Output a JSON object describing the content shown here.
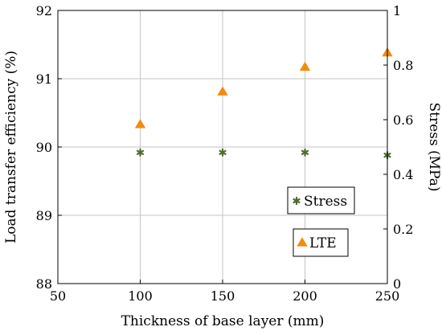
{
  "chart_data": {
    "type": "scatter",
    "xlabel": "Thickness of base layer (mm)",
    "ylabel_left": "Load transfer efficiency (%)",
    "ylabel_right": "Stress (MPa)",
    "xlim": [
      50,
      250
    ],
    "ylim_left": [
      88,
      92
    ],
    "ylim_right": [
      0,
      1
    ],
    "x_ticks": [
      50,
      100,
      150,
      200,
      250
    ],
    "y_left_ticks": [
      88,
      89,
      90,
      91,
      92
    ],
    "y_right_ticks": [
      0,
      0.2,
      0.4,
      0.6,
      0.8,
      1
    ],
    "grid": true,
    "series": [
      {
        "name": "Stress",
        "axis": "right",
        "marker": "asterisk",
        "color": "#4f6b2e",
        "x": [
          100,
          150,
          200,
          250
        ],
        "y": [
          0.48,
          0.48,
          0.48,
          0.47
        ]
      },
      {
        "name": "LTE",
        "axis": "left",
        "marker": "triangle",
        "color": "#f28c10",
        "x": [
          100,
          150,
          200,
          250
        ],
        "y": [
          90.33,
          90.81,
          91.17,
          91.38
        ]
      }
    ],
    "legends": [
      "Stress",
      "LTE"
    ]
  }
}
